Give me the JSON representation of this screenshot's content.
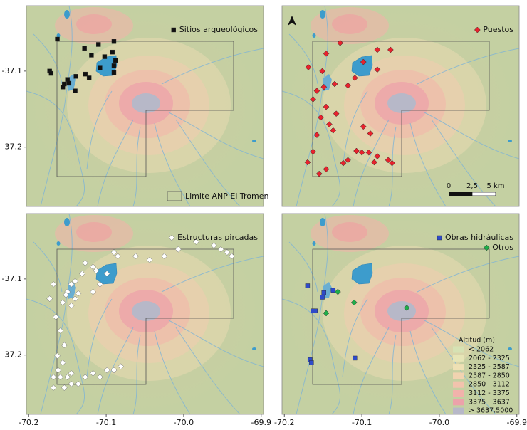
{
  "map": {
    "xlim": [
      -70.203,
      -69.897
    ],
    "ylim": [
      -37.278,
      -37.014
    ],
    "xticks": [
      -70.2,
      -70.1,
      {
        "value": -70.0,
        "label": "-70.0"
      },
      -69.9
    ],
    "yticks": [
      -37.1,
      -37.2
    ],
    "panels": [
      {
        "legend": [
          {
            "label": "Sitios arqueológicos",
            "color": "#111111",
            "marker": "square",
            "lon": [
              -70.163,
              -70.09,
              -70.11,
              -70.128,
              -70.092,
              -70.119,
              -70.102,
              -70.088,
              -70.173,
              -70.171,
              -70.15,
              -70.154,
              -70.156,
              -70.139,
              -70.127,
              -70.122,
              -70.14,
              -70.09,
              -70.09,
              -70.108,
              -70.148
            ],
            "lat": [
              -37.058,
              -37.061,
              -37.065,
              -37.07,
              -37.075,
              -37.079,
              -37.081,
              -37.086,
              -37.1,
              -37.103,
              -37.111,
              -37.117,
              -37.121,
              -37.107,
              -37.104,
              -37.109,
              -37.126,
              -37.102,
              -37.093,
              -37.096,
              -37.116
            ]
          }
        ],
        "boundary_label": "Limite ANP El Tromen"
      },
      {
        "legend": [
          {
            "label": "Puestos",
            "color": "#e8222d",
            "marker": "diamond",
            "lon": [
              -70.128,
              -70.08,
              -70.063,
              -70.146,
              -70.169,
              -70.098,
              -70.08,
              -70.151,
              -70.109,
              -70.135,
              -70.118,
              -70.149,
              -70.158,
              -70.163,
              -70.146,
              -70.133,
              -70.153,
              -70.142,
              -70.137,
              -70.098,
              -70.158,
              -70.089,
              -70.163,
              -70.107,
              -70.1,
              -70.091,
              -70.118,
              -70.124,
              -70.084,
              -70.08,
              -70.066,
              -70.061,
              -70.17,
              -70.155,
              -70.146
            ],
            "lat": [
              -37.063,
              -37.072,
              -37.072,
              -37.077,
              -37.095,
              -37.088,
              -37.098,
              -37.1,
              -37.109,
              -37.117,
              -37.119,
              -37.121,
              -37.126,
              -37.137,
              -37.147,
              -37.156,
              -37.161,
              -37.17,
              -37.178,
              -37.173,
              -37.184,
              -37.182,
              -37.206,
              -37.205,
              -37.207,
              -37.207,
              -37.217,
              -37.221,
              -37.22,
              -37.212,
              -37.217,
              -37.221,
              -37.22,
              -37.235,
              -37.229
            ]
          }
        ],
        "scale_bar": [
          "0",
          "2,5",
          "5 km"
        ]
      },
      {
        "legend": [
          {
            "label": "Estructuras pircadas",
            "color": "#ffffff",
            "marker": "diamond",
            "lon": [
              -70.09,
              -70.085,
              -70.062,
              -70.044,
              -70.025,
              -70.007,
              -69.984,
              -69.961,
              -69.952,
              -69.944,
              -69.938,
              -70.127,
              -70.117,
              -70.113,
              -70.099,
              -70.131,
              -70.14,
              -70.145,
              -70.15,
              -70.152,
              -70.156,
              -70.136,
              -70.14,
              -70.145,
              -70.168,
              -70.173,
              -70.165,
              -70.159,
              -70.154,
              -70.163,
              -70.162,
              -70.168,
              -70.159,
              -70.15,
              -70.145,
              -70.136,
              -70.127,
              -70.117,
              -70.108,
              -70.099,
              -70.09,
              -70.081,
              -70.168,
              -70.154,
              -70.145,
              -70.156,
              -70.117,
              -70.108
            ],
            "lat": [
              -37.065,
              -37.07,
              -37.07,
              -37.075,
              -37.07,
              -37.061,
              -37.051,
              -37.056,
              -37.061,
              -37.065,
              -37.07,
              -37.079,
              -37.084,
              -37.089,
              -37.093,
              -37.093,
              -37.103,
              -37.107,
              -37.117,
              -37.121,
              -37.131,
              -37.119,
              -37.126,
              -37.135,
              -37.107,
              -37.126,
              -37.15,
              -37.168,
              -37.187,
              -37.201,
              -37.22,
              -37.229,
              -37.229,
              -37.229,
              -37.238,
              -37.238,
              -37.229,
              -37.224,
              -37.229,
              -37.22,
              -37.22,
              -37.215,
              -37.243,
              -37.243,
              -37.224,
              -37.21,
              -37.117,
              -37.107
            ]
          }
        ]
      },
      {
        "legend": [
          {
            "label": "Obras hidráulicas",
            "color": "#2f4bc9",
            "marker": "square",
            "lon": [
              -70.17,
              -70.149,
              -70.137,
              -70.163,
              -70.16,
              -70.167,
              -70.165,
              -70.109,
              -70.151
            ],
            "lat": [
              -37.109,
              -37.118,
              -37.115,
              -37.142,
              -37.142,
              -37.206,
              -37.21,
              -37.204,
              -37.124
            ]
          },
          {
            "label": "Otros",
            "color": "#1fae4a",
            "marker": "diamond",
            "lon": [
              -70.131,
              -70.11,
              -70.146,
              -70.042
            ],
            "lat": [
              -37.117,
              -37.131,
              -37.145,
              -37.138
            ]
          }
        ],
        "elevation_legend": {
          "title": "Altitud (m)",
          "classes": [
            {
              "label": "< 2062",
              "color": "#d6e2b4"
            },
            {
              "label": "2062 - 2325",
              "color": "#e6e5b6"
            },
            {
              "label": "2325 - 2587",
              "color": "#eee0b4"
            },
            {
              "label": "2587 - 2850",
              "color": "#f1d3b0"
            },
            {
              "label": "2850 - 3112",
              "color": "#f2c3ad"
            },
            {
              "label": "3112 - 3375",
              "color": "#f1b2ab"
            },
            {
              "label": "3375 - 3637",
              "color": "#eca2aa"
            },
            {
              "label": "> 3637.5000",
              "color": "#b7b8c8"
            }
          ]
        }
      }
    ]
  }
}
